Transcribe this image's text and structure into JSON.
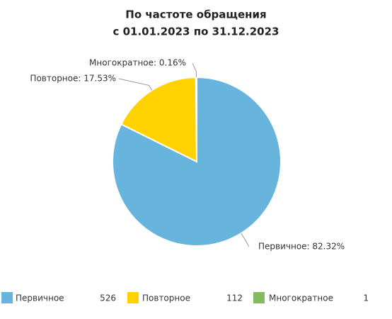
{
  "chart_data": {
    "type": "pie",
    "title": "По частоте обращения",
    "subtitle": "с 01.01.2023 по 31.12.2023",
    "categories": [
      "Первичное",
      "Повторное",
      "Многократное"
    ],
    "values": [
      82.32,
      17.53,
      0.16
    ],
    "value_labels": [
      "Первичное: 82.32%",
      "Повторное: 17.53%",
      "Многократное: 0.16%"
    ],
    "colors": [
      "#67b5dc",
      "#ffd200",
      "#84bb5e"
    ],
    "counts": [
      526,
      112,
      1
    ]
  }
}
